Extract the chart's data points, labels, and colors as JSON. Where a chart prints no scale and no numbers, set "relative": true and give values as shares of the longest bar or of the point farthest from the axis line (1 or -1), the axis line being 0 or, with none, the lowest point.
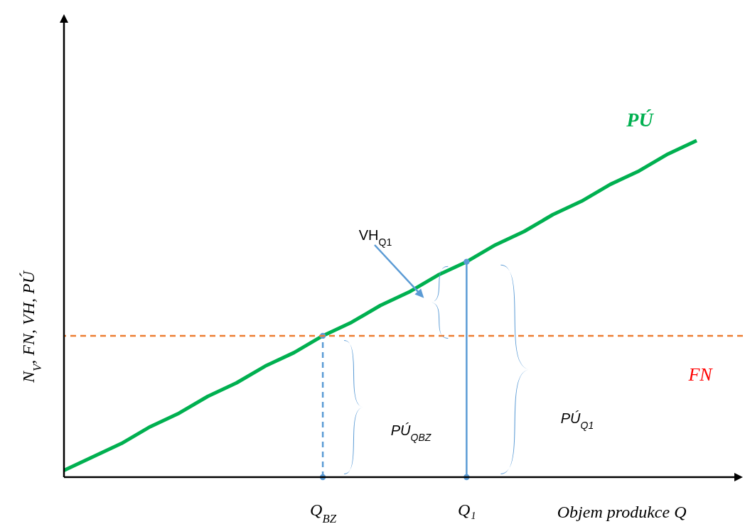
{
  "chart_data": {
    "type": "line",
    "relative": true,
    "categories": [
      null,
      null,
      null,
      null,
      null,
      null,
      null,
      null,
      null,
      "Q$_{BZ}$",
      null,
      null,
      null,
      null,
      "Q₁",
      null,
      null,
      null,
      null,
      null,
      null,
      null,
      null
    ],
    "xlabel": "Objem produkce Q",
    "ylabel": "N$_{V}$, FN, VH, PÚ",
    "series": [
      {
        "name": "PÚ",
        "color": "#00b050",
        "values": [
          0.02,
          0.06,
          0.1,
          0.15,
          0.19,
          0.24,
          0.28,
          0.33,
          0.37,
          0.42,
          0.46,
          0.51,
          0.55,
          0.6,
          0.64,
          0.69,
          0.73,
          0.78,
          0.82,
          0.87,
          0.91,
          0.96,
          1.0
        ]
      },
      {
        "color": "#5b9bd5",
        "x": [
          "Q$_{BZ}$",
          "Q$_{BZ}$"
        ],
        "values": [
          0,
          0.42
        ],
        "marker": "circle",
        "line_style": "dashed"
      },
      {
        "color": "#5b9bd5",
        "x": [
          "Q₁",
          "Q₁"
        ],
        "values": [
          0,
          0.64
        ],
        "marker": "circle",
        "line_style": "solid"
      }
    ],
    "ref_lines": [
      {
        "axis": "y",
        "value": 0.42,
        "label": "FN",
        "color": "#ed7d31",
        "line_style": "dashed"
      }
    ],
    "annotations": [
      "VH$_{Q1}$",
      "PÚ$_{QBZ}$",
      "PÚ$_{Q1}$"
    ]
  }
}
